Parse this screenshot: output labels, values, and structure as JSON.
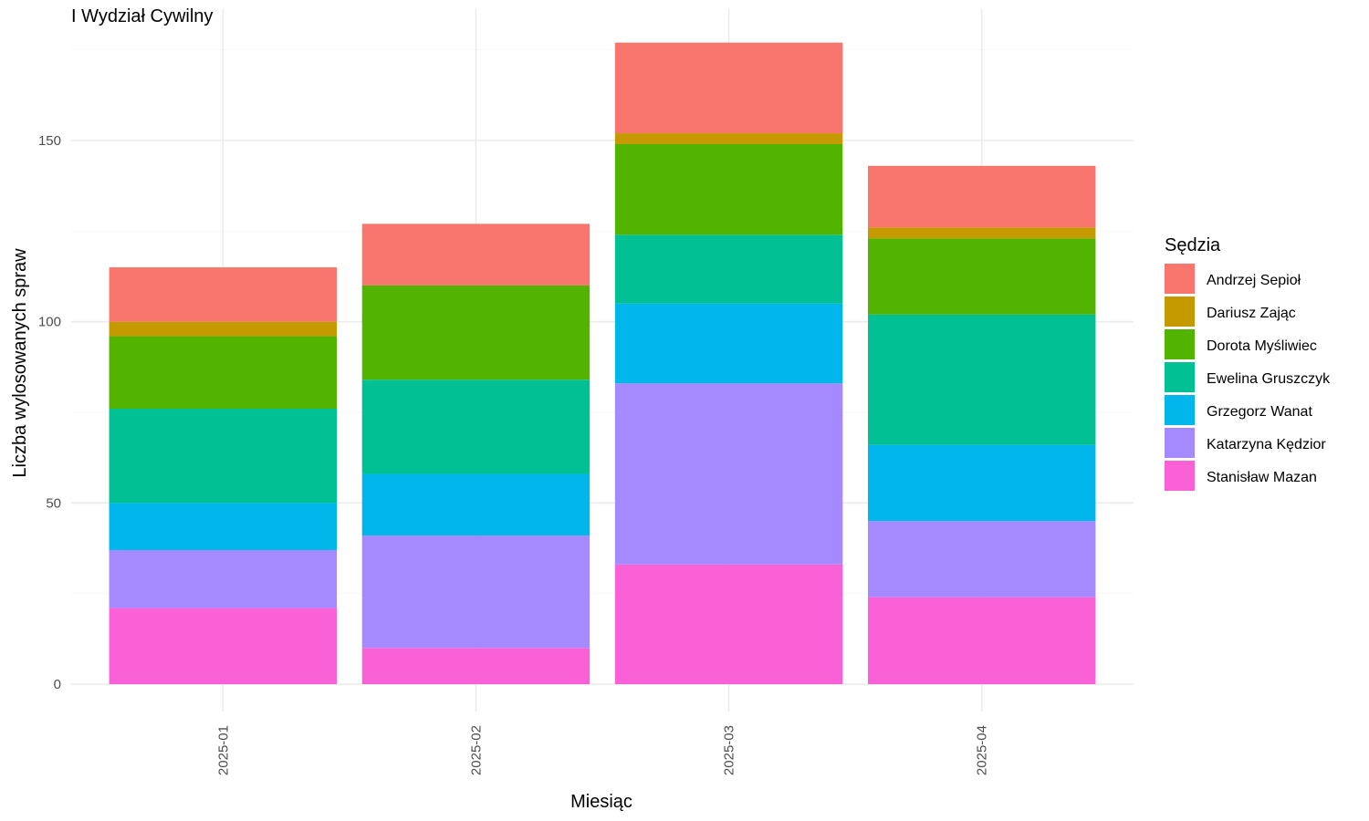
{
  "chart_data": {
    "type": "bar",
    "stacked": true,
    "title": "I Wydział Cywilny",
    "xlabel": "Miesiąc",
    "ylabel": "Liczba wylosowanych spraw",
    "ylim": [
      0,
      180
    ],
    "yticks": [
      0,
      50,
      100,
      150
    ],
    "categories": [
      "2025-01",
      "2025-02",
      "2025-03",
      "2025-04"
    ],
    "legend_title": "Sędzia",
    "legend_position": "right",
    "grid": true,
    "series": [
      {
        "name": "Andrzej Sepioł",
        "color": "#F8766D",
        "values": [
          15,
          17,
          25,
          17
        ]
      },
      {
        "name": "Dariusz Zając",
        "color": "#C49A00",
        "values": [
          4,
          0,
          3,
          3
        ]
      },
      {
        "name": "Dorota Myśliwiec",
        "color": "#53B400",
        "values": [
          20,
          26,
          25,
          21
        ]
      },
      {
        "name": "Ewelina Gruszczyk",
        "color": "#00C094",
        "values": [
          26,
          26,
          19,
          36
        ]
      },
      {
        "name": "Grzegorz Wanat",
        "color": "#00B6EB",
        "values": [
          13,
          17,
          22,
          21
        ]
      },
      {
        "name": "Katarzyna Kędzior",
        "color": "#A58AFF",
        "values": [
          16,
          31,
          50,
          21
        ]
      },
      {
        "name": "Stanisław Mazan",
        "color": "#FB61D7",
        "values": [
          21,
          10,
          33,
          24
        ]
      }
    ]
  }
}
